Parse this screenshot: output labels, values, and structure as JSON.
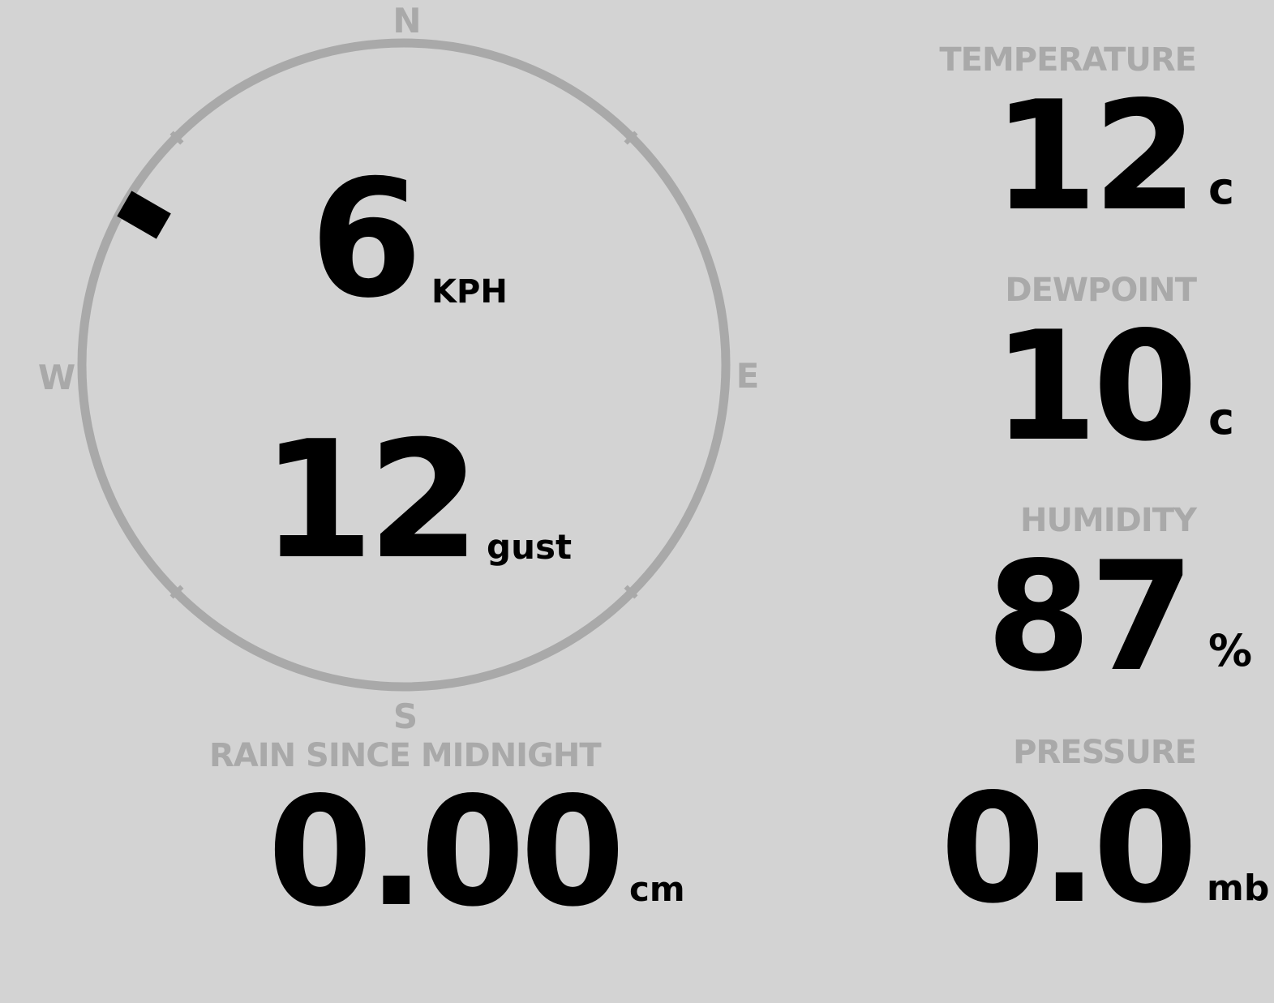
{
  "wind": {
    "speed": "6",
    "speed_unit": "KPH",
    "gust": "12",
    "gust_unit": "gust",
    "direction_deg": 300,
    "compass": {
      "n": "N",
      "e": "E",
      "s": "S",
      "w": "W"
    }
  },
  "rain": {
    "label": "RAIN SINCE MIDNIGHT",
    "value": "0.00",
    "unit": "cm"
  },
  "temperature": {
    "label": "TEMPERATURE",
    "value": "12",
    "unit": "c"
  },
  "dewpoint": {
    "label": "DEWPOINT",
    "value": "10",
    "unit": "c"
  },
  "humidity": {
    "label": "HUMIDITY",
    "value": "87",
    "unit": "%"
  },
  "pressure": {
    "label": "PRESSURE",
    "value": "0.0",
    "unit": "mb"
  },
  "colors": {
    "background": "#d3d3d3",
    "label": "#a9a9a9",
    "value": "#000000"
  }
}
